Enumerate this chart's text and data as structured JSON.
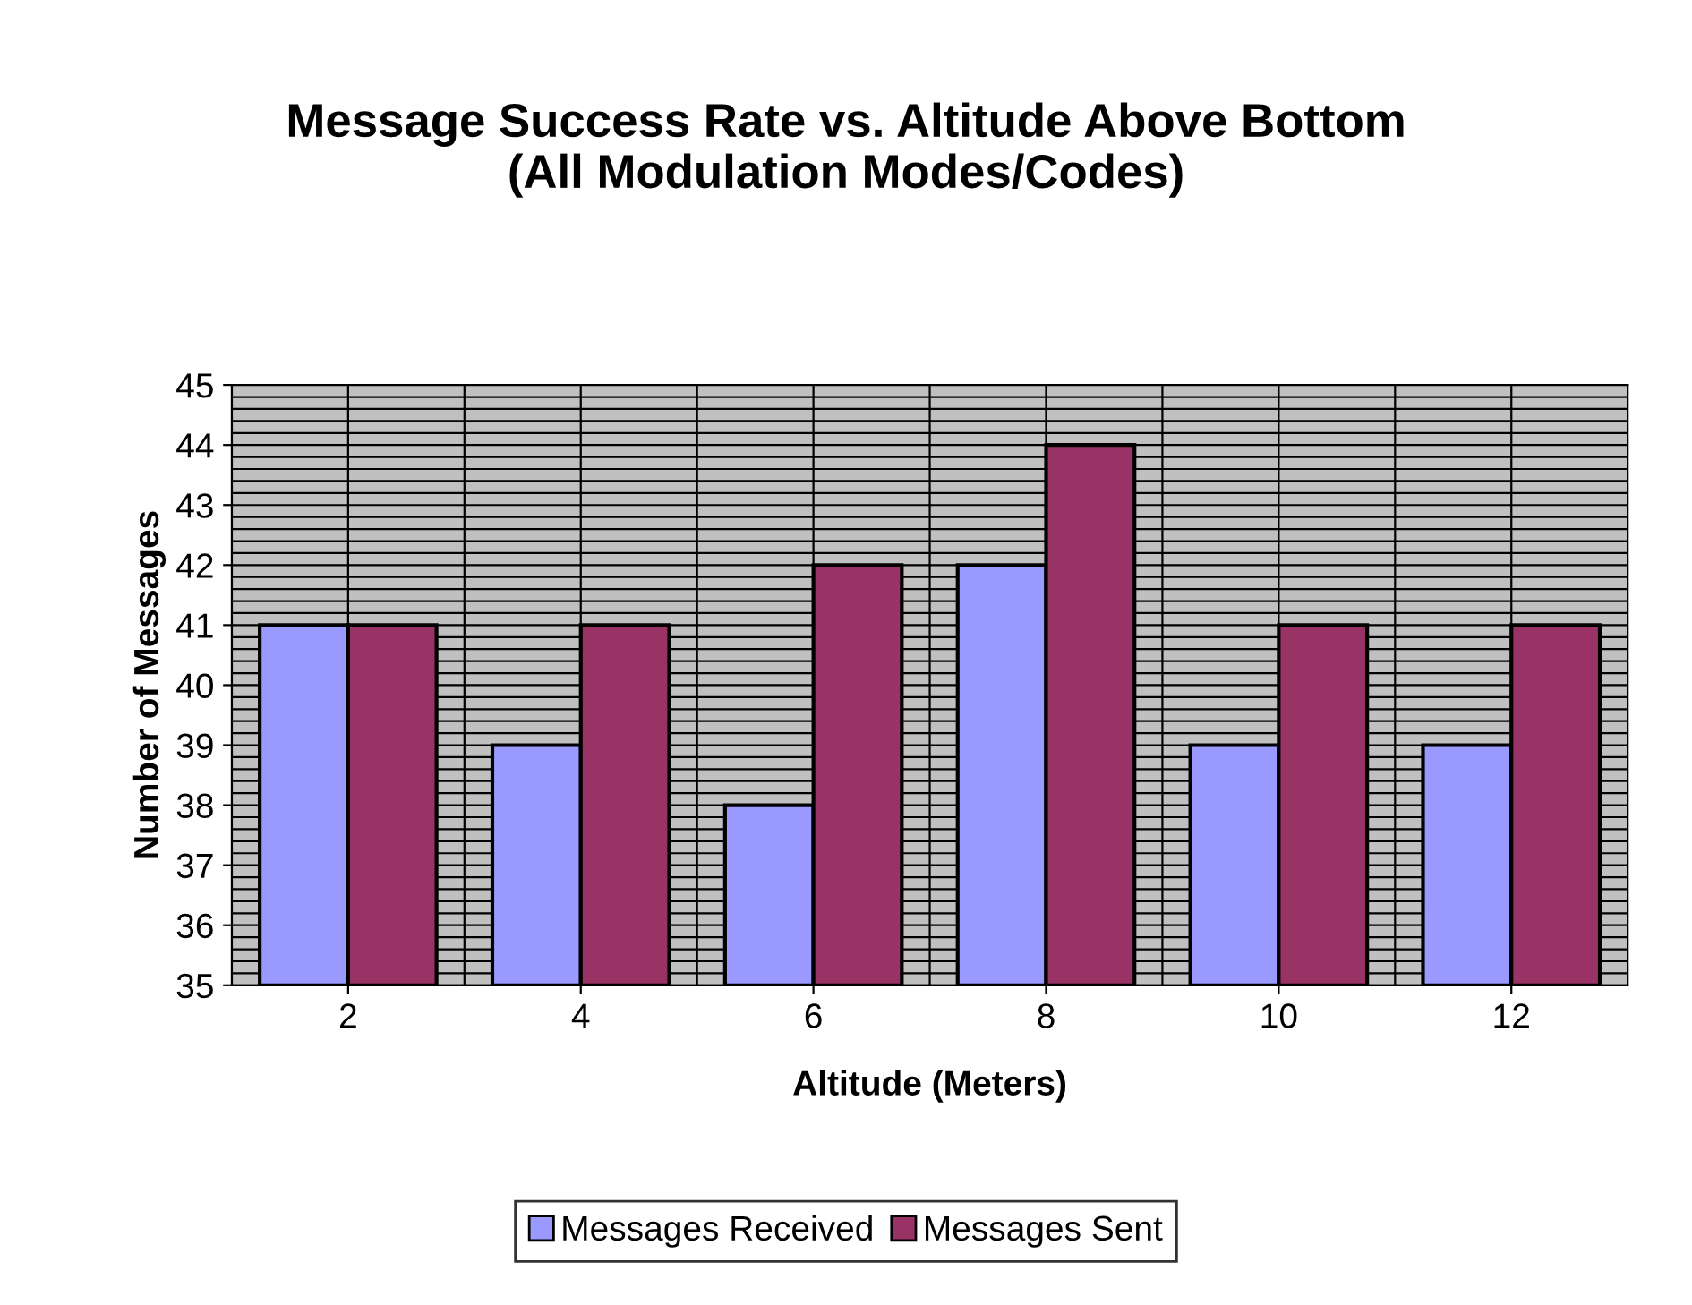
{
  "chart_data": {
    "type": "bar",
    "title": "Message Success Rate vs. Altitude Above Bottom\n(All Modulation Modes/Codes)",
    "xlabel": "Altitude (Meters)",
    "ylabel": "Number of Messages",
    "categories": [
      "2",
      "4",
      "6",
      "8",
      "10",
      "12"
    ],
    "series": [
      {
        "name": "Messages Received",
        "color": "#9999ff",
        "values": [
          41,
          39,
          38,
          42,
          39,
          39
        ]
      },
      {
        "name": "Messages Sent",
        "color": "#993366",
        "values": [
          41,
          41,
          42,
          44,
          41,
          41
        ]
      }
    ],
    "ylim": [
      35,
      45
    ],
    "yticks": [
      35,
      36,
      37,
      38,
      39,
      40,
      41,
      42,
      43,
      44,
      45
    ],
    "grid": true,
    "legend": "bottom"
  }
}
